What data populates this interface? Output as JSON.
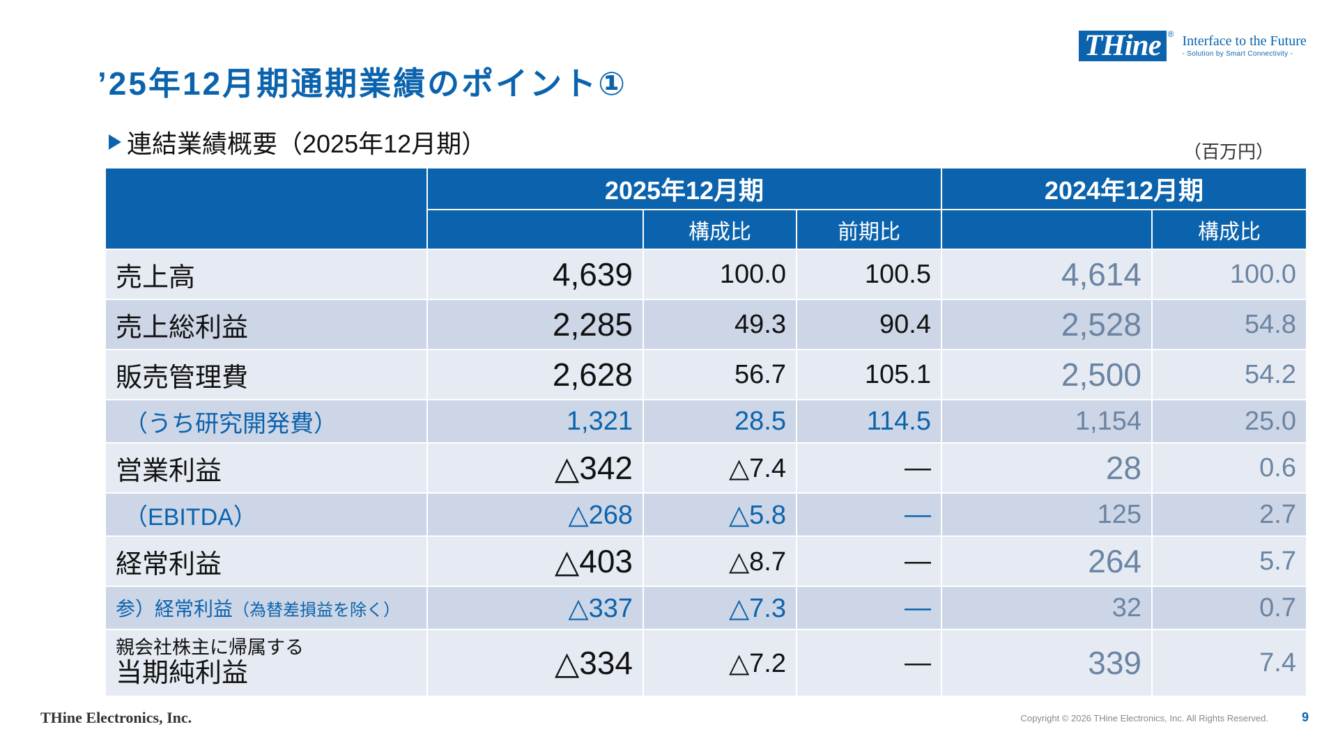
{
  "logo": {
    "brand": "THine",
    "registered": "®",
    "tagline": "Interface to the Future",
    "subtagline": "- Solution by Smart Connectivity -"
  },
  "title": "’25年12月期通期業績のポイント①",
  "subtitle": "連結業績概要（2025年12月期）",
  "unit": "（百万円）",
  "table": {
    "header": {
      "period_current": "2025年12月期",
      "period_prev": "2024年12月期",
      "comp_ratio": "構成比",
      "yoy": "前期比",
      "comp_ratio_prev": "構成比"
    },
    "rows": [
      {
        "label": "売上高",
        "cur": "4,639",
        "ratio": "100.0",
        "yoy": "100.5",
        "prev": "4,614",
        "prev_ratio": "100.0"
      },
      {
        "label": "売上総利益",
        "cur": "2,285",
        "ratio": "49.3",
        "yoy": "90.4",
        "prev": "2,528",
        "prev_ratio": "54.8"
      },
      {
        "label": "販売管理費",
        "cur": "2,628",
        "ratio": "56.7",
        "yoy": "105.1",
        "prev": "2,500",
        "prev_ratio": "54.2"
      },
      {
        "label": "（うち研究開発費）",
        "cur": "1,321",
        "ratio": "28.5",
        "yoy": "114.5",
        "prev": "1,154",
        "prev_ratio": "25.0"
      },
      {
        "label": "営業利益",
        "cur": "△342",
        "ratio": "△7.4",
        "yoy": "—",
        "prev": "28",
        "prev_ratio": "0.6"
      },
      {
        "label": "（EBITDA）",
        "cur": "△268",
        "ratio": "△5.8",
        "yoy": "—",
        "prev": "125",
        "prev_ratio": "2.7"
      },
      {
        "label": "経常利益",
        "cur": "△403",
        "ratio": "△8.7",
        "yoy": "—",
        "prev": "264",
        "prev_ratio": "5.7"
      },
      {
        "label": "参）経常利益",
        "label_note": "（為替差損益を除く）",
        "cur": "△337",
        "ratio": "△7.3",
        "yoy": "—",
        "prev": "32",
        "prev_ratio": "0.7"
      },
      {
        "label_line1": "親会社株主に帰属する",
        "label": "当期純利益",
        "cur": "△334",
        "ratio": "△7.2",
        "yoy": "—",
        "prev": "339",
        "prev_ratio": "7.4"
      }
    ]
  },
  "footer": {
    "company": "THine Electronics, Inc.",
    "copyright": "Copyright © 2026 THine Electronics, Inc. All Rights Reserved.",
    "page": "9"
  },
  "colors": {
    "brand_blue": "#0b63ad",
    "row_light": "#e6ebf3",
    "row_dark": "#cdd6e6",
    "prev_text": "#6b84a3"
  }
}
